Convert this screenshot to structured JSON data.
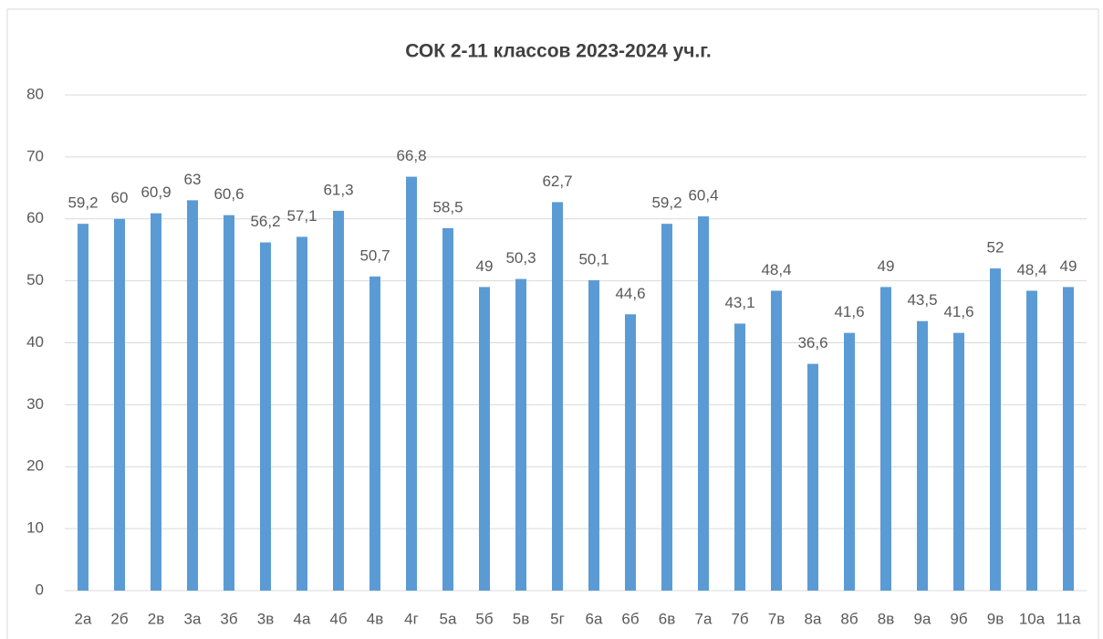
{
  "chart_data": {
    "type": "bar",
    "title": "СОК 2-11 классов  2023-2024 уч.г.",
    "categories": [
      "2а",
      "2б",
      "2в",
      "3а",
      "3б",
      "3в",
      "4а",
      "4б",
      "4в",
      "4г",
      "5а",
      "5б",
      "5в",
      "5г",
      "6а",
      "6б",
      "6в",
      "7а",
      "7б",
      "7в",
      "8а",
      "8б",
      "8в",
      "9а",
      "9б",
      "9в",
      "10а",
      "11а"
    ],
    "values": [
      59.2,
      60,
      60.9,
      63,
      60.6,
      56.2,
      57.1,
      61.3,
      50.7,
      66.8,
      58.5,
      49,
      50.3,
      62.7,
      50.1,
      44.6,
      59.2,
      60.4,
      43.1,
      48.4,
      36.6,
      41.6,
      49,
      43.5,
      41.6,
      52,
      48.4,
      49
    ],
    "value_labels": [
      "59,2",
      "60",
      "60,9",
      "63",
      "60,6",
      "56,2",
      "57,1",
      "61,3",
      "50,7",
      "66,8",
      "58,5",
      "49",
      "50,3",
      "62,7",
      "50,1",
      "44,6",
      "59,2",
      "60,4",
      "43,1",
      "48,4",
      "36,6",
      "41,6",
      "49",
      "43,5",
      "41,6",
      "52",
      "48,4",
      "49"
    ],
    "color": "#5b9bd5",
    "ylim": [
      0,
      80
    ],
    "yticks": [
      0,
      10,
      20,
      30,
      40,
      50,
      60,
      70,
      80
    ],
    "grid": true
  }
}
